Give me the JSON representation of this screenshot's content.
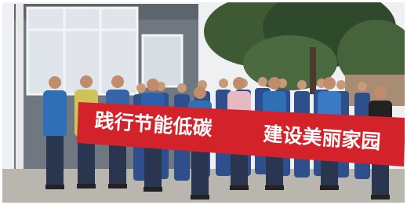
{
  "banner": {
    "text": [
      "践行节能低碳",
      "建设美丽家园"
    ]
  }
}
